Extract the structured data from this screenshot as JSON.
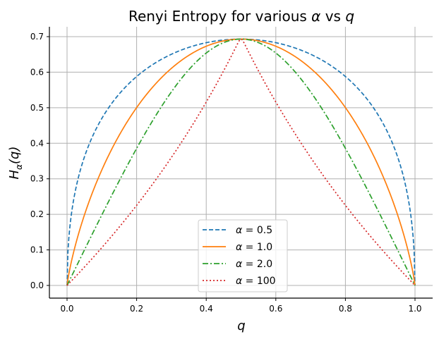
{
  "chart_data": {
    "type": "line",
    "title": "Renyi Entropy for various α vs q",
    "title_parts": {
      "prefix": "Renyi Entropy for various ",
      "alpha": "α",
      "middle": " vs ",
      "q": "q"
    },
    "xlabel": "q",
    "ylabel": "H_α(q)",
    "ylabel_parts": {
      "H": "H",
      "sub": "α",
      "arg": "(q)"
    },
    "xlim": [
      -0.05,
      1.05
    ],
    "ylim": [
      -0.035,
      0.728
    ],
    "xticks": [
      0.0,
      0.2,
      0.4,
      0.6,
      0.8,
      1.0
    ],
    "xtick_labels": [
      "0.0",
      "0.2",
      "0.4",
      "0.6",
      "0.8",
      "1.0"
    ],
    "yticks": [
      0.0,
      0.1,
      0.2,
      0.3,
      0.4,
      0.5,
      0.6,
      0.7
    ],
    "ytick_labels": [
      "0.0",
      "0.1",
      "0.2",
      "0.3",
      "0.4",
      "0.5",
      "0.6",
      "0.7"
    ],
    "grid": true,
    "legend_position": "lower center",
    "x": [
      0.0,
      0.05,
      0.1,
      0.2,
      0.3,
      0.4,
      0.5,
      0.6,
      0.7,
      0.8,
      0.9,
      0.95,
      1.0
    ],
    "series": [
      {
        "name": "α = 0.5",
        "alpha": "0.5",
        "color": "#1f77b4",
        "style": "dashed",
        "values": [
          0.0,
          0.405,
          0.47,
          0.588,
          0.655,
          0.686,
          0.693,
          0.686,
          0.655,
          0.588,
          0.47,
          0.405,
          0.0
        ]
      },
      {
        "name": "α = 1.0",
        "alpha": "1.0",
        "color": "#ff7f0e",
        "style": "solid",
        "values": [
          0.0,
          0.199,
          0.325,
          0.5,
          0.611,
          0.673,
          0.693,
          0.673,
          0.611,
          0.5,
          0.325,
          0.199,
          0.0
        ]
      },
      {
        "name": "α = 2.0",
        "alpha": "2.0",
        "color": "#2ca02c",
        "style": "dashdot",
        "values": [
          0.0,
          0.1,
          0.198,
          0.386,
          0.536,
          0.654,
          0.693,
          0.654,
          0.536,
          0.386,
          0.198,
          0.1,
          0.0
        ]
      },
      {
        "name": "α = 100",
        "alpha": "100",
        "color": "#d62728",
        "style": "dotted",
        "values": [
          0.0,
          0.051,
          0.105,
          0.223,
          0.357,
          0.511,
          0.693,
          0.511,
          0.357,
          0.223,
          0.105,
          0.051,
          0.0
        ]
      }
    ]
  },
  "legend": {
    "items": [
      {
        "label_alpha": "α",
        "label_eq": " = ",
        "label_val": "0.5"
      },
      {
        "label_alpha": "α",
        "label_eq": " = ",
        "label_val": "1.0"
      },
      {
        "label_alpha": "α",
        "label_eq": " = ",
        "label_val": "2.0"
      },
      {
        "label_alpha": "α",
        "label_eq": " = ",
        "label_val": "100"
      }
    ]
  }
}
